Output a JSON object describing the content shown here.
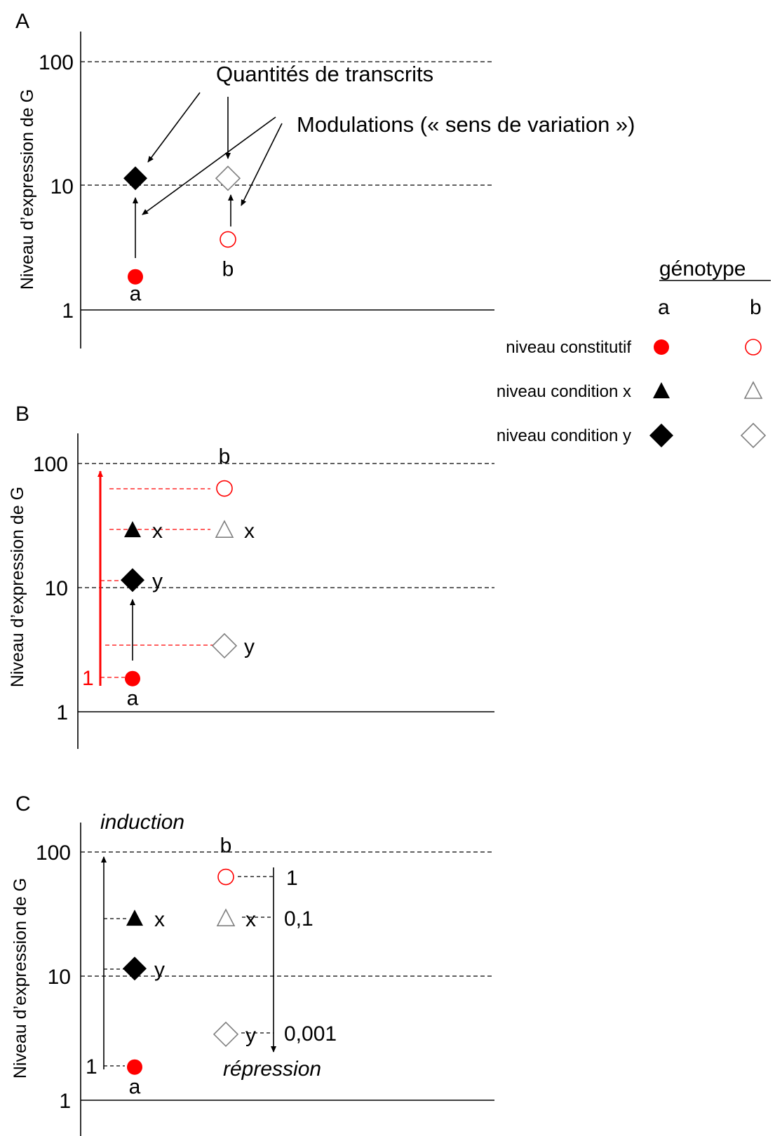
{
  "colors": {
    "red": "#ff0000",
    "black": "#000000",
    "hollow": "#7f7f7f"
  },
  "legend": {
    "title": "génotype",
    "col_a": "a",
    "col_b": "b",
    "rows": [
      {
        "label": "niveau constitutif",
        "a_marker": "circle-filled-red",
        "b_marker": "circle-open-red"
      },
      {
        "label": "niveau condition x",
        "a_marker": "triangle-filled",
        "b_marker": "triangle-open"
      },
      {
        "label": "niveau condition y",
        "a_marker": "diamond-filled",
        "b_marker": "diamond-open"
      }
    ]
  },
  "annotations_A": {
    "quantites": "Quantités de transcrits",
    "modulations": "Modulations (« sens de variation »)"
  },
  "annotations_B": {
    "ratio_one": "1"
  },
  "annotations_C": {
    "induction": "induction",
    "repression": "répression",
    "ratio_one_left": "1",
    "ratio_one": "1",
    "ratio_tenth": "0,1",
    "ratio_thousandth": "0,001"
  },
  "chart_data": [
    {
      "panel": "A",
      "type": "scatter",
      "yscale": "log",
      "ylabel": "Niveau d’expression de G",
      "yticks": [
        1,
        10,
        100
      ],
      "ylim": [
        1,
        100
      ],
      "grid": "dashed at 10 and 100",
      "points": [
        {
          "genotype": "a",
          "level": "constitutif",
          "marker": "circle-filled-red",
          "y": 1.85,
          "label": "a"
        },
        {
          "genotype": "a",
          "level": "condition y",
          "marker": "diamond-filled",
          "y": 11.5
        },
        {
          "genotype": "b",
          "level": "constitutif",
          "marker": "circle-open-red",
          "y": 3.7,
          "label": "b"
        },
        {
          "genotype": "b",
          "level": "condition y",
          "marker": "diamond-open",
          "y": 11.5
        }
      ]
    },
    {
      "panel": "B",
      "type": "scatter",
      "yscale": "log",
      "ylabel": "Niveau d’expression de G",
      "yticks": [
        1,
        10,
        100
      ],
      "ylim": [
        1,
        100
      ],
      "points": [
        {
          "genotype": "a",
          "level": "constitutif",
          "marker": "circle-filled-red",
          "y": 1.85,
          "label": "a"
        },
        {
          "genotype": "a",
          "level": "condition x",
          "marker": "triangle-filled",
          "y": 29,
          "label": "x"
        },
        {
          "genotype": "a",
          "level": "condition y",
          "marker": "diamond-filled",
          "y": 11.5,
          "label": "y"
        },
        {
          "genotype": "b",
          "level": "constitutif",
          "marker": "circle-open-red",
          "y": 63,
          "label": "b"
        },
        {
          "genotype": "b",
          "level": "condition x",
          "marker": "triangle-open",
          "y": 29,
          "label": "x"
        },
        {
          "genotype": "b",
          "level": "condition y",
          "marker": "diamond-open",
          "y": 3.4,
          "label": "y"
        }
      ]
    },
    {
      "panel": "C",
      "type": "scatter",
      "yscale": "log",
      "ylabel": "Niveau d’expression de G",
      "yticks": [
        1,
        10,
        100
      ],
      "ylim": [
        1,
        100
      ],
      "points": [
        {
          "genotype": "a",
          "level": "constitutif",
          "marker": "circle-filled-red",
          "y": 1.85,
          "label": "a"
        },
        {
          "genotype": "a",
          "level": "condition x",
          "marker": "triangle-filled",
          "y": 29,
          "label": "x"
        },
        {
          "genotype": "a",
          "level": "condition y",
          "marker": "diamond-filled",
          "y": 11.5,
          "label": "y"
        },
        {
          "genotype": "b",
          "level": "constitutif",
          "marker": "circle-open-red",
          "y": 63,
          "label": "b"
        },
        {
          "genotype": "b",
          "level": "condition x",
          "marker": "triangle-open",
          "y": 29,
          "label": "x"
        },
        {
          "genotype": "b",
          "level": "condition y",
          "marker": "diamond-open",
          "y": 3.4,
          "label": "y"
        }
      ]
    }
  ]
}
